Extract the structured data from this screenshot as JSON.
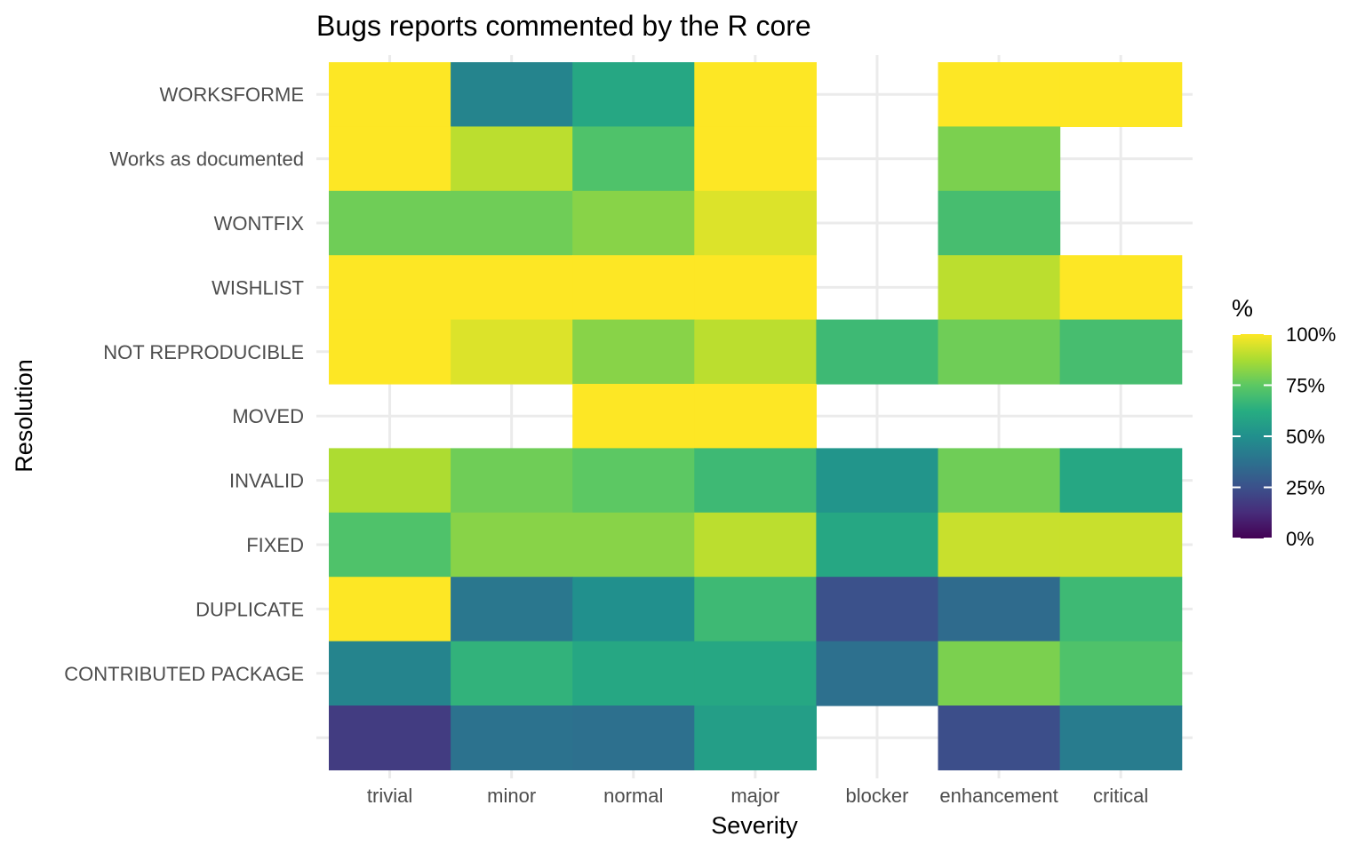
{
  "chart_data": {
    "type": "heatmap",
    "title": "Bugs reports commented by the R core",
    "xlabel": "Severity",
    "ylabel": "Resolution",
    "x_categories": [
      "trivial",
      "minor",
      "normal",
      "major",
      "blocker",
      "enhancement",
      "critical"
    ],
    "y_categories_top_to_bottom": [
      "WORKSFORME",
      "Works as documented",
      "WONTFIX",
      "WISHLIST",
      "NOT REPRODUCIBLE",
      "MOVED",
      "INVALID",
      "FIXED",
      "DUPLICATE",
      "CONTRIBUTED PACKAGE",
      ""
    ],
    "values_percent": [
      [
        100,
        45,
        60,
        100,
        null,
        100,
        100
      ],
      [
        100,
        90,
        72,
        100,
        null,
        80,
        null
      ],
      [
        78,
        78,
        82,
        95,
        null,
        70,
        null
      ],
      [
        100,
        100,
        100,
        100,
        null,
        90,
        100
      ],
      [
        100,
        95,
        82,
        90,
        68,
        78,
        70
      ],
      [
        null,
        null,
        100,
        100,
        null,
        null,
        null
      ],
      [
        88,
        78,
        75,
        68,
        52,
        78,
        60
      ],
      [
        72,
        82,
        82,
        90,
        60,
        92,
        92
      ],
      [
        100,
        40,
        50,
        68,
        25,
        35,
        68
      ],
      [
        45,
        65,
        60,
        60,
        37,
        80,
        72
      ],
      [
        18,
        38,
        37,
        56,
        null,
        24,
        42
      ]
    ],
    "scale": {
      "title": "%",
      "min": 0,
      "max": 100,
      "ticks": [
        "100%",
        "75%",
        "50%",
        "25%",
        "0%"
      ],
      "palette": "viridis"
    },
    "grid": true,
    "legend_position": "right"
  }
}
